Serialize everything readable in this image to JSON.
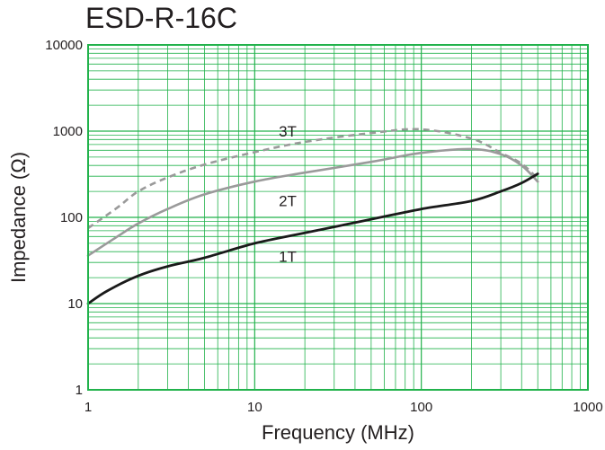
{
  "chart_data": {
    "type": "line",
    "title": "ESD-R-16C",
    "xlabel": "Frequency (MHz)",
    "ylabel": "Impedance (Ω)",
    "x_scale": "log",
    "y_scale": "log",
    "xlim": [
      1,
      1000
    ],
    "ylim": [
      1,
      10000
    ],
    "x_ticks": [
      "1",
      "10",
      "100",
      "1000"
    ],
    "y_ticks": [
      "1",
      "10",
      "100",
      "1000",
      "10000"
    ],
    "grid": true,
    "colors": {
      "grid": "#21b24b",
      "axis_frame": "#21b24b",
      "text": "#231f20"
    },
    "series": [
      {
        "name": "1T",
        "color": "#1a1a1a",
        "dash": "solid",
        "x": [
          1,
          1.3,
          2,
          3,
          5,
          10,
          20,
          50,
          100,
          200,
          300,
          400,
          500
        ],
        "y": [
          10,
          14,
          21,
          27,
          34,
          50,
          66,
          95,
          125,
          155,
          200,
          250,
          320
        ]
      },
      {
        "name": "2T",
        "color": "#9a9a9a",
        "dash": "solid",
        "x": [
          1,
          1.5,
          2,
          3,
          5,
          10,
          20,
          50,
          100,
          200,
          300,
          400,
          500
        ],
        "y": [
          36,
          60,
          85,
          125,
          185,
          260,
          330,
          440,
          560,
          620,
          540,
          400,
          260
        ]
      },
      {
        "name": "3T",
        "color": "#9a9a9a",
        "dash": "dashed",
        "x": [
          1,
          1.5,
          2,
          3,
          5,
          10,
          20,
          50,
          100,
          200,
          300,
          400,
          500
        ],
        "y": [
          75,
          130,
          200,
          290,
          410,
          570,
          750,
          950,
          1050,
          820,
          560,
          420,
          280
        ]
      }
    ]
  }
}
